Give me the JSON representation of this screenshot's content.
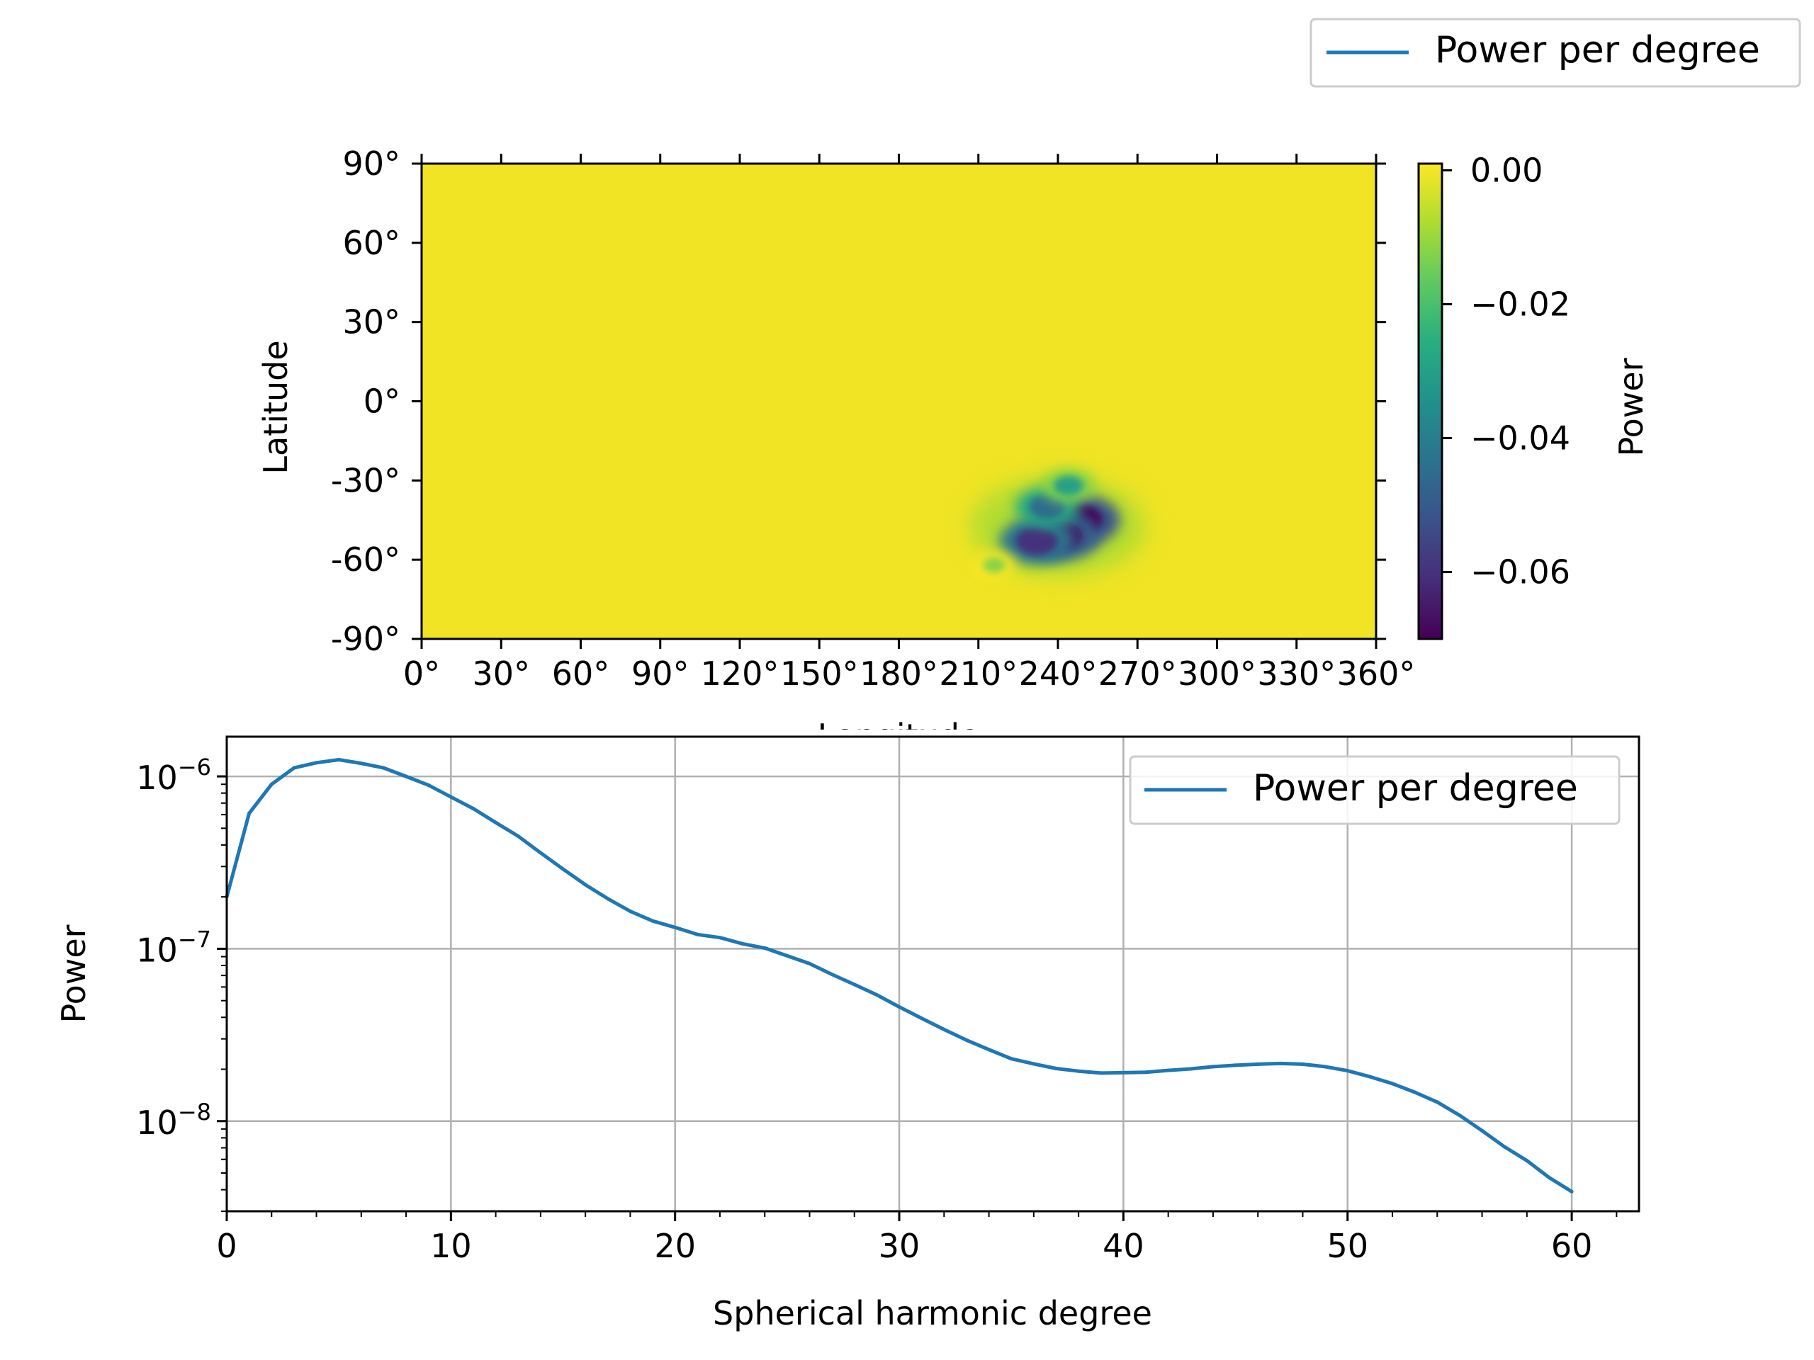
{
  "figure_legend": {
    "label": "Power per degree",
    "color": "#1f77b4"
  },
  "chart_data": [
    {
      "type": "heatmap",
      "colormap": "viridis",
      "xlabel": "Longitude",
      "ylabel": "Latitude",
      "xlim": [
        0,
        360
      ],
      "ylim": [
        -90,
        90
      ],
      "x_ticks": [
        0,
        30,
        60,
        90,
        120,
        150,
        180,
        210,
        240,
        270,
        300,
        330,
        360
      ],
      "x_tick_labels": [
        "0°",
        "30°",
        "60°",
        "90°",
        "120°",
        "150°",
        "180°",
        "210°",
        "240°",
        "270°",
        "300°",
        "330°",
        "360°"
      ],
      "y_ticks": [
        90,
        60,
        30,
        0,
        -30,
        -60,
        -90
      ],
      "y_tick_labels": [
        "90°",
        "60°",
        "30°",
        "0°",
        "-30°",
        "-60°",
        "-90°"
      ],
      "background_value": 0.0,
      "anomaly": {
        "region_lon": [
          225,
          255
        ],
        "region_lat": [
          -60,
          -35
        ],
        "min_value": -0.07,
        "features": [
          {
            "lon": 248,
            "lat": -45,
            "value": -0.07
          },
          {
            "lon": 241,
            "lat": -51,
            "value": -0.066
          },
          {
            "lon": 232,
            "lat": -53,
            "value": -0.06
          },
          {
            "lon": 236,
            "lat": -40,
            "value": -0.045
          },
          {
            "lon": 244,
            "lat": -32,
            "value": -0.03
          },
          {
            "lon": 216,
            "lat": -62,
            "value": -0.012
          }
        ]
      },
      "colorbar": {
        "label": "Power",
        "range": [
          -0.07,
          0.001
        ],
        "ticks": [
          0.0,
          -0.02,
          -0.04,
          -0.06
        ],
        "tick_labels": [
          "0.00",
          "−0.02",
          "−0.04",
          "−0.06"
        ]
      }
    },
    {
      "type": "line",
      "xlabel": "Spherical harmonic degree",
      "ylabel": "Power",
      "xlim": [
        0,
        63
      ],
      "ylim": [
        3e-09,
        1.7e-06
      ],
      "yscale": "log",
      "grid": true,
      "legend_position": "upper right",
      "x_ticks": [
        0,
        10,
        20,
        30,
        40,
        50,
        60
      ],
      "x_tick_labels": [
        "0",
        "10",
        "20",
        "30",
        "40",
        "50",
        "60"
      ],
      "y_ticks": [
        1e-08,
        1e-07,
        1e-06
      ],
      "y_tick_labels": [
        {
          "base": "10",
          "exp": "−8"
        },
        {
          "base": "10",
          "exp": "−7"
        },
        {
          "base": "10",
          "exp": "−6"
        }
      ],
      "series": [
        {
          "name": "Power per degree",
          "color": "#1f77b4",
          "x": [
            0,
            1,
            2,
            3,
            4,
            5,
            6,
            7,
            8,
            9,
            10,
            11,
            12,
            13,
            14,
            15,
            16,
            17,
            18,
            19,
            20,
            21,
            22,
            23,
            24,
            25,
            26,
            27,
            28,
            29,
            30,
            31,
            32,
            33,
            34,
            35,
            36,
            37,
            38,
            39,
            40,
            41,
            42,
            43,
            44,
            45,
            46,
            47,
            48,
            49,
            50,
            51,
            52,
            53,
            54,
            55,
            56,
            57,
            58,
            59,
            60
          ],
          "y": [
            2e-07,
            6.1e-07,
            9e-07,
            1.12e-06,
            1.2e-06,
            1.25e-06,
            1.19e-06,
            1.12e-06,
            1e-06,
            8.9e-07,
            7.6e-07,
            6.5e-07,
            5.4e-07,
            4.5e-07,
            3.6e-07,
            2.9e-07,
            2.35e-07,
            1.95e-07,
            1.65e-07,
            1.45e-07,
            1.33e-07,
            1.21e-07,
            1.16e-07,
            1.07e-07,
            1.01e-07,
            9.1e-08,
            8.2e-08,
            7.1e-08,
            6.2e-08,
            5.4e-08,
            4.6e-08,
            3.95e-08,
            3.4e-08,
            2.95e-08,
            2.6e-08,
            2.3e-08,
            2.15e-08,
            2.02e-08,
            1.95e-08,
            1.9e-08,
            1.91e-08,
            1.92e-08,
            1.97e-08,
            2.01e-08,
            2.07e-08,
            2.11e-08,
            2.14e-08,
            2.16e-08,
            2.14e-08,
            2.07e-08,
            1.96e-08,
            1.81e-08,
            1.65e-08,
            1.47e-08,
            1.29e-08,
            1.08e-08,
            8.8e-09,
            7.1e-09,
            5.9e-09,
            4.7e-09,
            3.9e-09
          ]
        }
      ]
    }
  ]
}
